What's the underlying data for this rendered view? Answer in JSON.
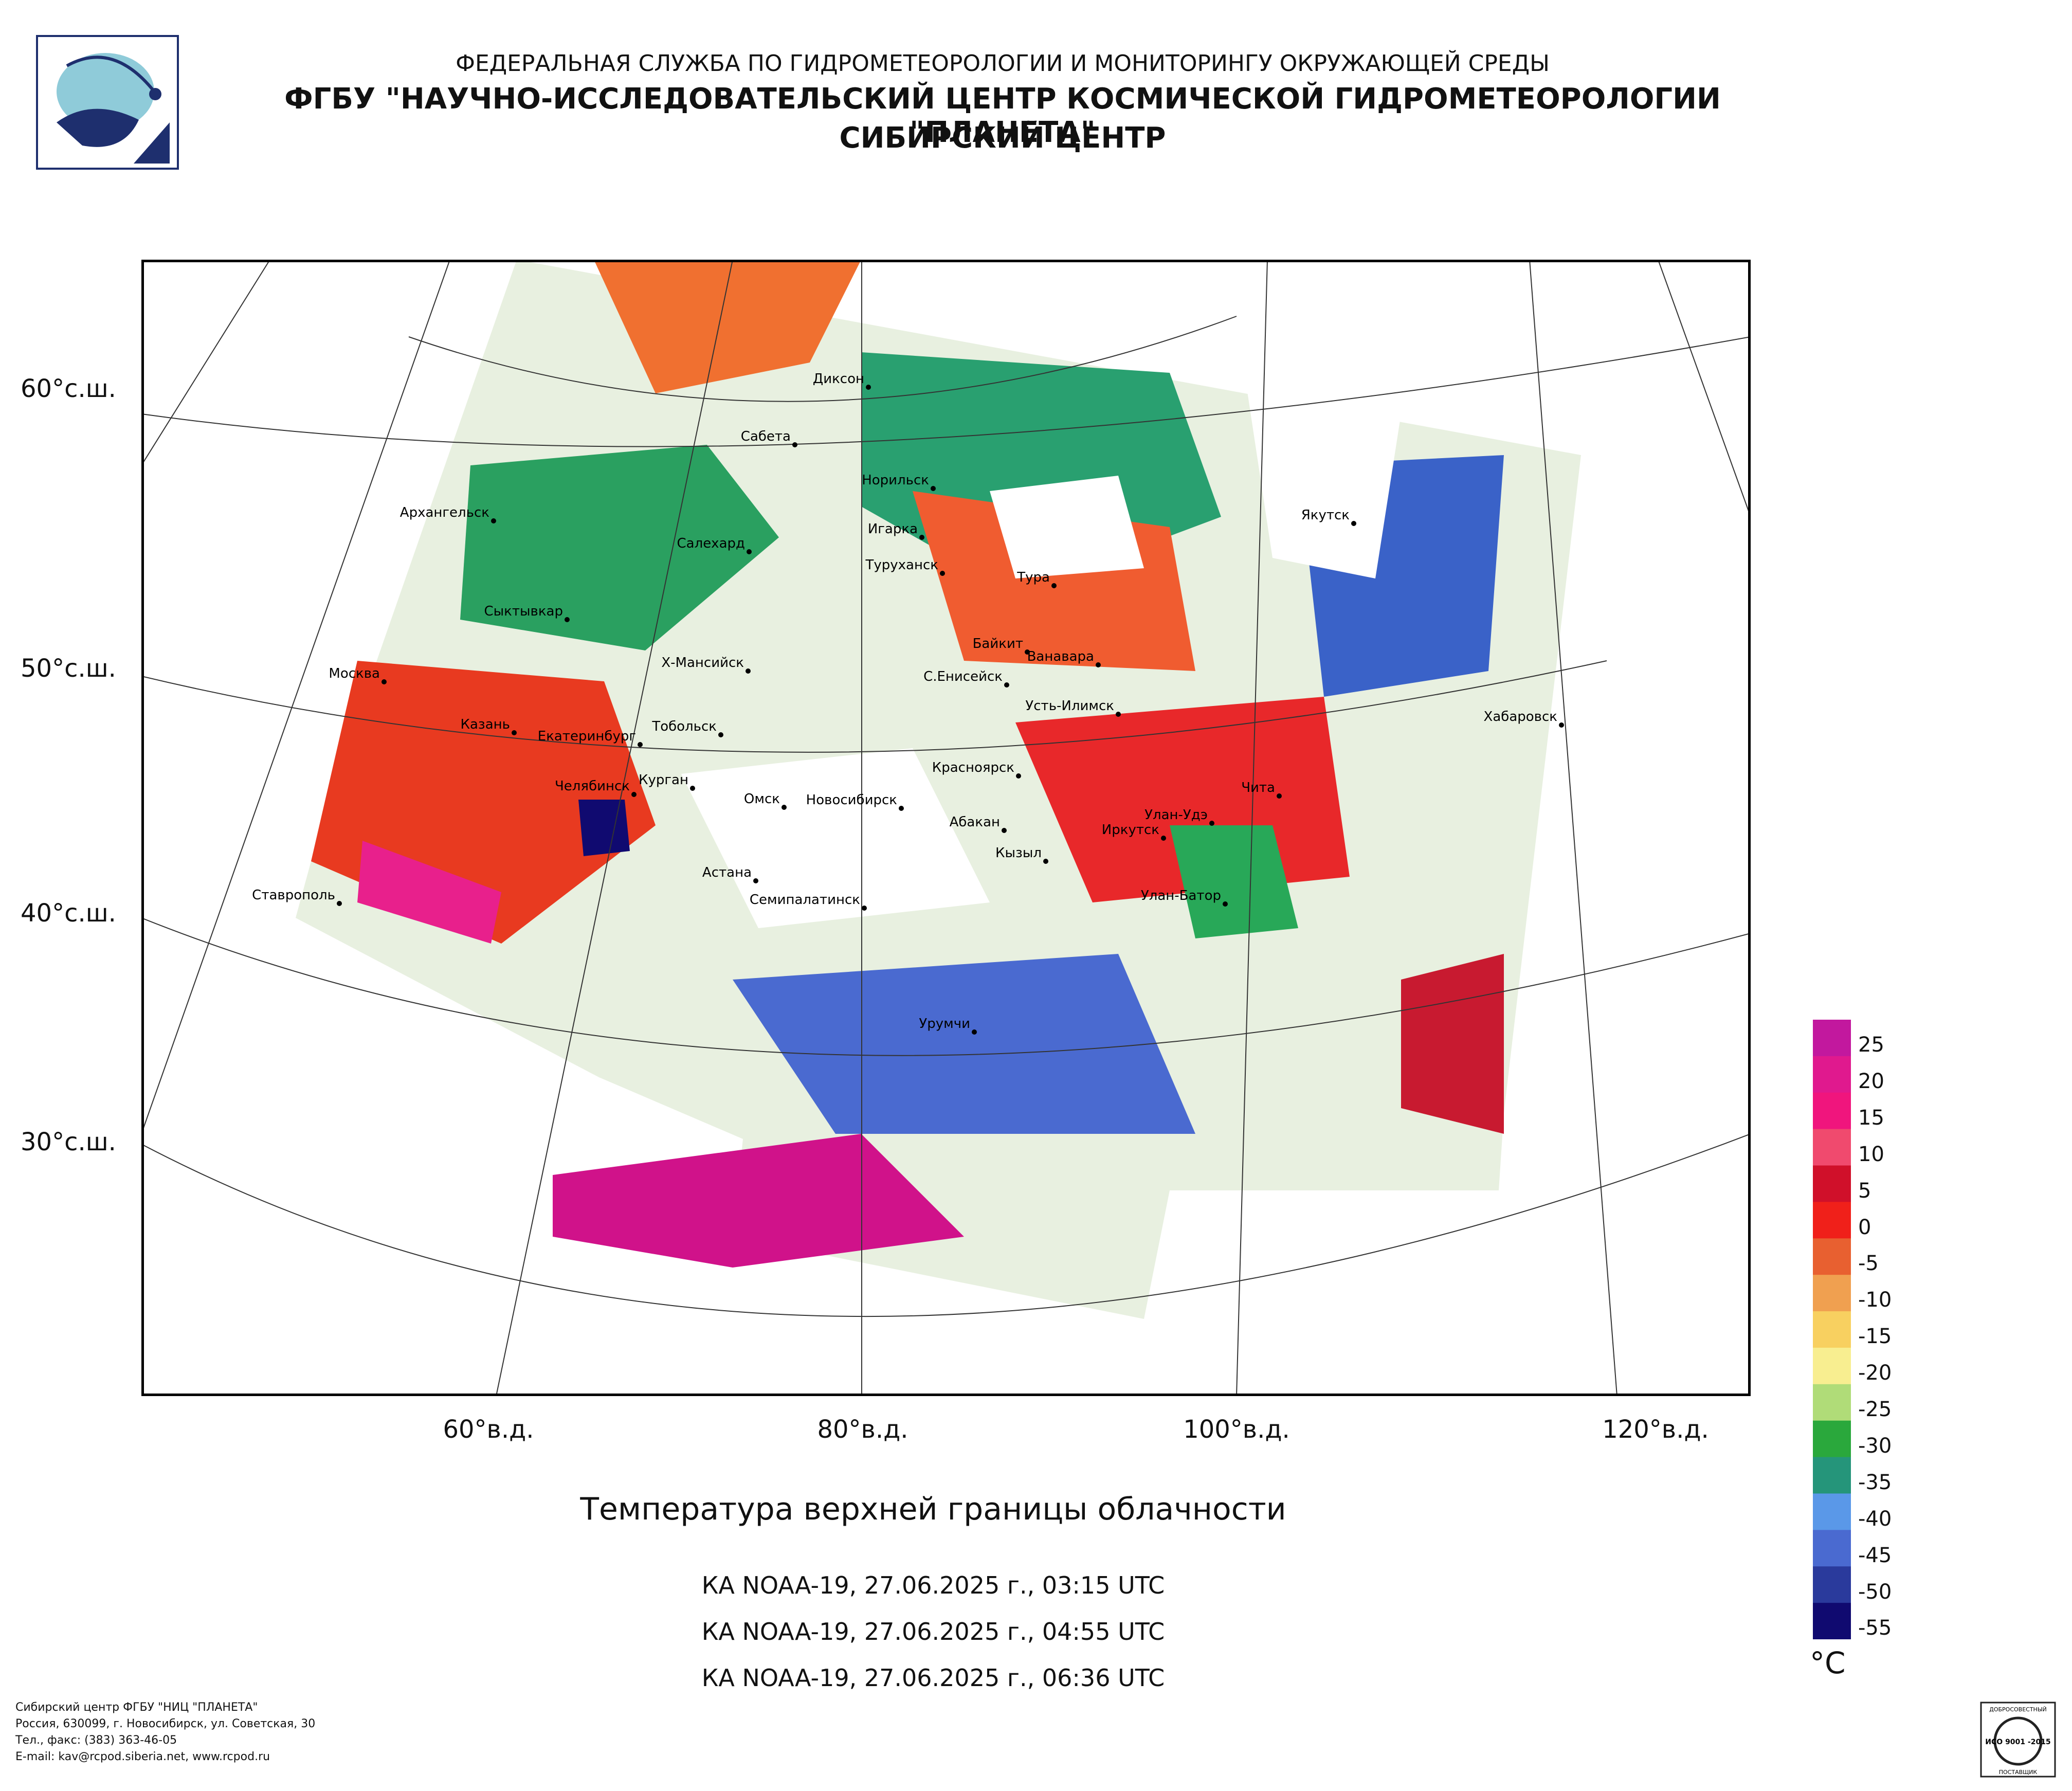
{
  "header": {
    "line1": "ФЕДЕРАЛЬНАЯ СЛУЖБА ПО ГИДРОМЕТЕОРОЛОГИИ И МОНИТОРИНГУ ОКРУЖАЮЩЕЙ СРЕДЫ",
    "line2": "ФГБУ \"НАУЧНО-ИССЛЕДОВАТЕЛЬСКИЙ ЦЕНТР КОСМИЧЕСКОЙ ГИДРОМЕТЕОРОЛОГИИ \"ПЛАНЕТА\"",
    "line3": "СИБИРСКИЙ ЦЕНТР"
  },
  "map": {
    "lat_labels": [
      "60°с.ш.",
      "50°с.ш.",
      "40°с.ш.",
      "30°с.ш."
    ],
    "lon_labels": [
      "60°в.д.",
      "80°в.д.",
      "100°в.д.",
      "120°в.д."
    ],
    "cities": [
      "Диксон",
      "Сабета",
      "Норильск",
      "Игарка",
      "Архангельск",
      "Салехард",
      "Туруханск",
      "Тура",
      "Якутск",
      "Сыктывкар",
      "Байкит",
      "Ванавара",
      "Москва",
      "Х-Мансийск",
      "С.Енисейск",
      "Усть-Илимск",
      "Хабаровск",
      "Казань",
      "Екатеринбург",
      "Тобольск",
      "Красноярск",
      "Чита",
      "Челябинск",
      "Курган",
      "Омск",
      "Новосибирск",
      "Абакан",
      "Улан-Удэ",
      "Иркутск",
      "Кызыл",
      "Астана",
      "Семипалатинск",
      "Улан-Батор",
      "Ставрополь",
      "Урумчи"
    ]
  },
  "title": "Температура верхней границы облачности",
  "passes": [
    "КА NOAA-19, 27.06.2025 г., 03:15 UTC",
    "КА NOAA-19, 27.06.2025 г., 04:55 UTC",
    "КА NOAA-19, 27.06.2025 г., 06:36 UTC"
  ],
  "legend": {
    "unit": "°C",
    "ticks": [
      "25",
      "20",
      "15",
      "10",
      "5",
      "0",
      "-5",
      "-10",
      "-15",
      "-20",
      "-25",
      "-30",
      "-35",
      "-40",
      "-45",
      "-50",
      "-55"
    ],
    "colors": [
      "#c2189e",
      "#e0198e",
      "#f0157d",
      "#f04a6e",
      "#d0102a",
      "#f0201a",
      "#e86030",
      "#f0a050",
      "#f8d060",
      "#f8ee90",
      "#b0dc78",
      "#2aa83c",
      "#25957a",
      "#5a98e8",
      "#4a6ad0",
      "#2a3a9c",
      "#100a70"
    ]
  },
  "footer": {
    "lines": [
      "Сибирский центр ФГБУ \"НИЦ \"ПЛАНЕТА\"",
      "Россия, 630099, г. Новосибирск, ул. Советская, 30",
      "Тел., факс: (383) 363-46-05",
      "E-mail: kav@rcpod.siberia.net, www.rcpod.ru"
    ],
    "cert_top": "ДОБРОСОВЕСТНЫЙ",
    "cert_main": "ИСО 9001 -2015",
    "cert_bottom": "ПОСТАВЩИК"
  }
}
